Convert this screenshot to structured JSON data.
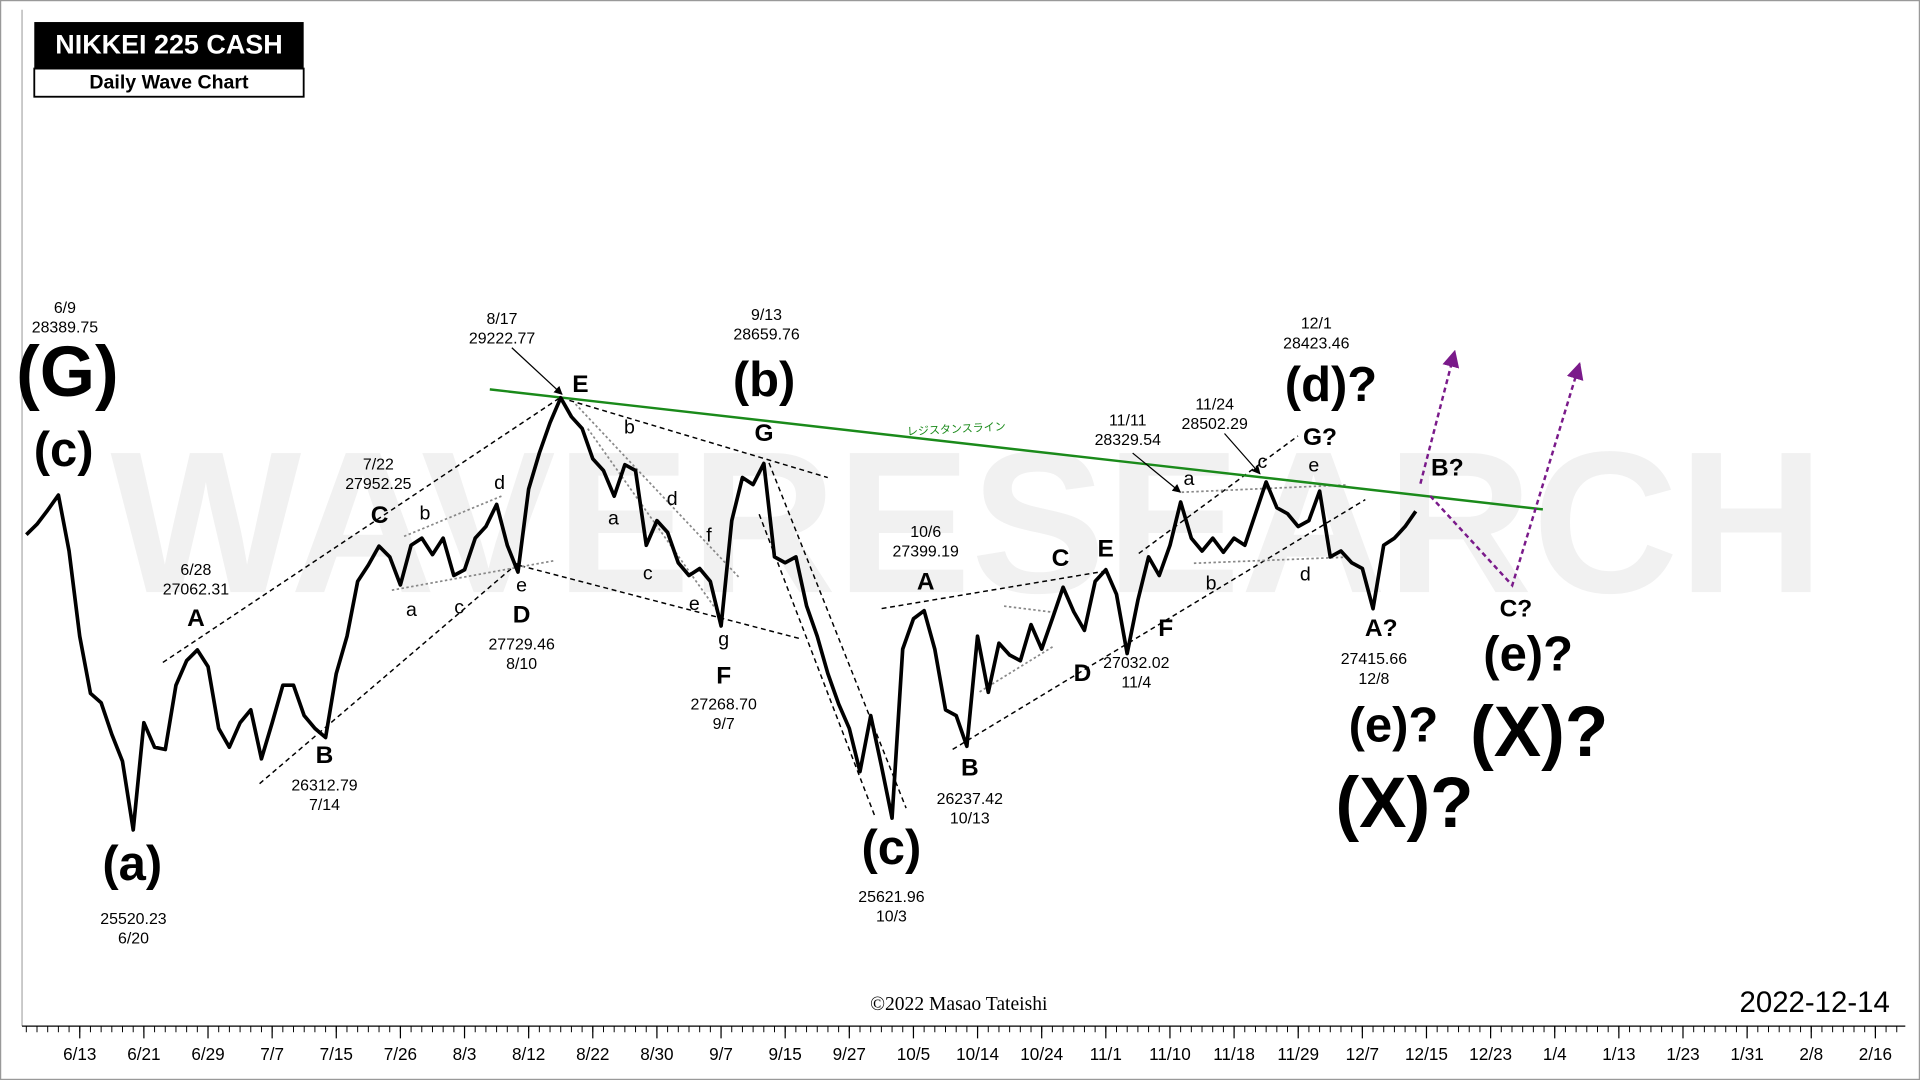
{
  "chart_data": {
    "type": "line",
    "title": "NIKKEI 225 CASH",
    "subtitle": "Daily Wave Chart",
    "watermark": "WAVERESEARCH",
    "copyright": "©2022 Masao Tateishi",
    "date": "2022-12-14",
    "color": "#000000",
    "x": [
      -5,
      -4,
      -3,
      -2,
      -1,
      0,
      1,
      2,
      3,
      4,
      5,
      6,
      7,
      8,
      9,
      10,
      11,
      12,
      13,
      14,
      15,
      16,
      17,
      18,
      19,
      20,
      21,
      22,
      23,
      24,
      25,
      26,
      27,
      28,
      29,
      30,
      31,
      32,
      33,
      34,
      35,
      36,
      37,
      38,
      39,
      40,
      41,
      42,
      43,
      44,
      45,
      46,
      47,
      48,
      49,
      50,
      51,
      52,
      53,
      54,
      55,
      56,
      57,
      58,
      59,
      60,
      61,
      62,
      63,
      64,
      65,
      66,
      67,
      68,
      69,
      70,
      71,
      72,
      73,
      74,
      75,
      76,
      77,
      78,
      79,
      80,
      81,
      82,
      83,
      84,
      85,
      86,
      87,
      88,
      89,
      90,
      91,
      92,
      93,
      94,
      95,
      96,
      97,
      98,
      99,
      100,
      101,
      102,
      103,
      104,
      105,
      106,
      107,
      108,
      109,
      110,
      111,
      112,
      113,
      114,
      115,
      116,
      117,
      118,
      119,
      120,
      121,
      122,
      123,
      124,
      125
    ],
    "values": [
      28050,
      28140,
      28260,
      28389.75,
      27910,
      27180,
      26690,
      26610,
      26340,
      26110,
      25520.23,
      26440,
      26230,
      26210,
      26760,
      26970,
      27062.31,
      26920,
      26390,
      26230,
      26440,
      26550,
      26130,
      26440,
      26760,
      26760,
      26500,
      26390,
      26312.79,
      26860,
      27180,
      27650,
      27790,
      27952.25,
      27860,
      27620,
      27960,
      28020,
      27880,
      28020,
      27700,
      27750,
      28020,
      28120,
      28310,
      27960,
      27729.46,
      28440,
      28750,
      29010,
      29222.77,
      29060,
      28960,
      28700,
      28600,
      28380,
      28650,
      28600,
      27960,
      28170,
      28070,
      27810,
      27700,
      27760,
      27650,
      27268.7,
      28170,
      28540,
      28480,
      28659.76,
      27860,
      27810,
      27860,
      27440,
      27180,
      26860,
      26600,
      26390,
      26020,
      26500,
      26070,
      25621.96,
      27070,
      27330,
      27399.19,
      27070,
      26550,
      26500,
      26237.42,
      27180,
      26700,
      27120,
      27020,
      26970,
      27280,
      27070,
      27330,
      27600,
      27390,
      27230,
      27650,
      27750,
      27540,
      27032.02,
      27490,
      27860,
      27700,
      27960,
      28329.54,
      28020,
      27910,
      28020,
      27900,
      28020,
      27960,
      28230,
      28502.29,
      28280,
      28230,
      28120,
      28170,
      28423.46,
      27860,
      27910,
      27810,
      27760,
      27415.66,
      27960,
      28020,
      28120,
      28250
    ],
    "xlim": [
      -5.4,
      170.8
    ],
    "ylim": [
      23840,
      32442
    ],
    "xticks": [
      {
        "value": 0,
        "label": "6/13"
      },
      {
        "value": 6,
        "label": "6/21"
      },
      {
        "value": 12,
        "label": "6/29"
      },
      {
        "value": 18,
        "label": "7/7"
      },
      {
        "value": 24,
        "label": "7/15"
      },
      {
        "value": 30,
        "label": "7/26"
      },
      {
        "value": 36,
        "label": "8/3"
      },
      {
        "value": 42,
        "label": "8/12"
      },
      {
        "value": 48,
        "label": "8/22"
      },
      {
        "value": 54,
        "label": "8/30"
      },
      {
        "value": 60,
        "label": "9/7"
      },
      {
        "value": 66,
        "label": "9/15"
      },
      {
        "value": 72,
        "label": "9/27"
      },
      {
        "value": 78,
        "label": "10/5"
      },
      {
        "value": 84,
        "label": "10/14"
      },
      {
        "value": 90,
        "label": "10/24"
      },
      {
        "value": 96,
        "label": "11/1"
      },
      {
        "value": 102,
        "label": "11/10"
      },
      {
        "value": 108,
        "label": "11/18"
      },
      {
        "value": 114,
        "label": "11/29"
      },
      {
        "value": 120,
        "label": "12/7"
      },
      {
        "value": 126,
        "label": "12/15"
      },
      {
        "value": 132,
        "label": "12/23"
      },
      {
        "value": 138,
        "label": "1/4"
      },
      {
        "value": 144,
        "label": "1/13"
      },
      {
        "value": 150,
        "label": "1/23"
      },
      {
        "value": 156,
        "label": "1/31"
      },
      {
        "value": 162,
        "label": "2/8"
      },
      {
        "value": 168,
        "label": "2/16"
      }
    ],
    "resistance_label": "レジスタンスライン",
    "annotations": [
      "(G)",
      "(c)",
      "(a)",
      "(b)",
      "(c)",
      "(d)?",
      "(e)?",
      "(X)?",
      "(e)?",
      "(X)?",
      "A",
      "B",
      "C",
      "D",
      "E",
      "F",
      "G",
      "A",
      "B",
      "C",
      "D",
      "E",
      "F",
      "G?",
      "B?",
      "A?",
      "C?",
      "b",
      "d",
      "a",
      "c",
      "e",
      "b",
      "a",
      "d",
      "c",
      "f",
      "e",
      "g",
      "a",
      "c",
      "e",
      "b",
      "d",
      "6/9",
      "28389.75",
      "6/28",
      "27062.31",
      "26312.79",
      "7/14",
      "7/22",
      "27952.25",
      "8/17",
      "29222.77",
      "27729.46",
      "8/10",
      "9/13",
      "28659.76",
      "27268.70",
      "9/7",
      "25520.23",
      "6/20",
      "10/6",
      "27399.19",
      "26237.42",
      "10/13",
      "25621.96",
      "10/3",
      "11/11",
      "28329.54",
      "11/24",
      "28502.29",
      "12/1",
      "28423.46",
      "27032.02",
      "11/4",
      "27415.66",
      "12/8"
    ]
  }
}
